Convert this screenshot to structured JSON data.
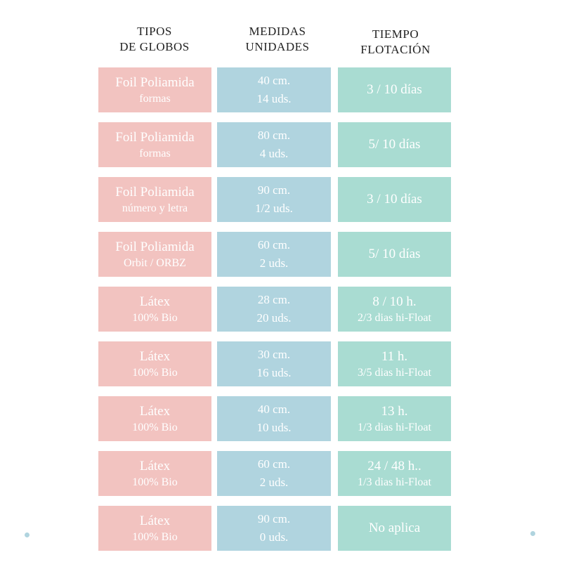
{
  "headers": [
    [
      "TIPOS",
      "DE GLOBOS"
    ],
    [
      "MEDIDAS",
      "UNIDADES"
    ],
    [
      "TIEMPO",
      "FLOTACIÓN"
    ]
  ],
  "rows": [
    {
      "type": [
        "Foil Poliamida",
        "formas"
      ],
      "size": [
        "40 cm.",
        "14 uds."
      ],
      "time": [
        "3 / 10 días"
      ]
    },
    {
      "type": [
        "Foil Poliamida",
        "formas"
      ],
      "size": [
        "80 cm.",
        "4 uds."
      ],
      "time": [
        "5/ 10 días"
      ]
    },
    {
      "type": [
        "Foil Poliamida",
        "número y letra"
      ],
      "size": [
        "90 cm.",
        "1/2 uds."
      ],
      "time": [
        "3 / 10 días"
      ]
    },
    {
      "type": [
        "Foil Poliamida",
        "Orbit / ORBZ"
      ],
      "size": [
        "60 cm.",
        "2 uds."
      ],
      "time": [
        "5/ 10 días"
      ]
    },
    {
      "type": [
        "Látex",
        "100% Bio"
      ],
      "size": [
        "28 cm.",
        "20 uds."
      ],
      "time": [
        "8 / 10 h.",
        "2/3 dias hi-Float"
      ]
    },
    {
      "type": [
        "Látex",
        "100% Bio"
      ],
      "size": [
        "30 cm.",
        "16 uds."
      ],
      "time": [
        "11 h.",
        "3/5 dias hi-Float"
      ]
    },
    {
      "type": [
        "Látex",
        "100% Bio"
      ],
      "size": [
        "40 cm.",
        "10 uds."
      ],
      "time": [
        "13 h.",
        "1/3 dias hi-Float"
      ]
    },
    {
      "type": [
        "Látex",
        "100% Bio"
      ],
      "size": [
        "60 cm.",
        "2 uds."
      ],
      "time": [
        "24 / 48 h..",
        "1/3 dias hi-Float"
      ]
    },
    {
      "type": [
        "Látex",
        "100% Bio"
      ],
      "size": [
        "90 cm.",
        "0 uds."
      ],
      "time": [
        "No aplica"
      ]
    }
  ]
}
